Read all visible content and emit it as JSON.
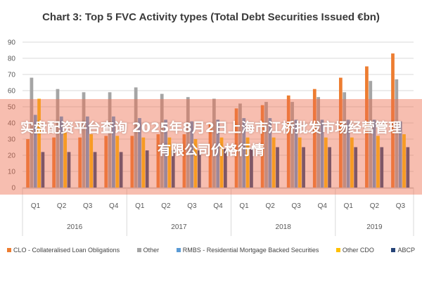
{
  "chart_data": {
    "type": "bar",
    "title": "Chart 3: Top 5 FVC Activity types (Total Debt Securities Issued €bn)",
    "xlabel": "",
    "ylabel": "",
    "ylim": [
      0,
      90
    ],
    "yticks": [
      "0",
      "10",
      "20",
      "30",
      "40",
      "50",
      "60",
      "70",
      "80",
      "90"
    ],
    "grid": true,
    "legend_position": "bottom",
    "categories": [
      "Q1",
      "Q2",
      "Q3",
      "Q4",
      "Q1",
      "Q2",
      "Q3",
      "Q4",
      "Q1",
      "Q2",
      "Q3",
      "Q4",
      "Q1",
      "Q2",
      "Q3"
    ],
    "groups": [
      {
        "label": "2016",
        "span": 4
      },
      {
        "label": "2017",
        "span": 4
      },
      {
        "label": "2018",
        "span": 4
      },
      {
        "label": "2019",
        "span": 3
      }
    ],
    "series": [
      {
        "name": "CLO - Collateralised Loan Obligations",
        "color": "#ED7D31",
        "values": [
          30,
          31,
          31,
          32,
          32,
          33,
          33,
          40,
          49,
          51,
          57,
          61,
          68,
          75,
          83
        ]
      },
      {
        "name": "Other",
        "color": "#A5A5A5",
        "values": [
          68,
          61,
          59,
          59,
          62,
          58,
          56,
          55,
          52,
          53,
          53,
          56,
          59,
          66,
          67
        ]
      },
      {
        "name": "RMBS - Residential Mortgage Backed Securities",
        "color": "#5B9BD5",
        "values": [
          45,
          44,
          44,
          44,
          43,
          42,
          41,
          42,
          43,
          43,
          42,
          42,
          42,
          42,
          41
        ]
      },
      {
        "name": "Other CDO",
        "color": "#FFC000",
        "values": [
          55,
          34,
          33,
          32,
          31,
          31,
          30,
          31,
          31,
          31,
          31,
          31,
          31,
          32,
          33
        ]
      },
      {
        "name": "ABCP",
        "color": "#264478",
        "values": [
          22,
          22,
          22,
          22,
          23,
          23,
          23,
          24,
          24,
          25,
          25,
          25,
          25,
          25,
          25
        ]
      }
    ]
  },
  "overlay": {
    "text": "实盘配资平台查询 2025年8月2日上海市江桥批发市场经营管理有限公司价格行情"
  }
}
